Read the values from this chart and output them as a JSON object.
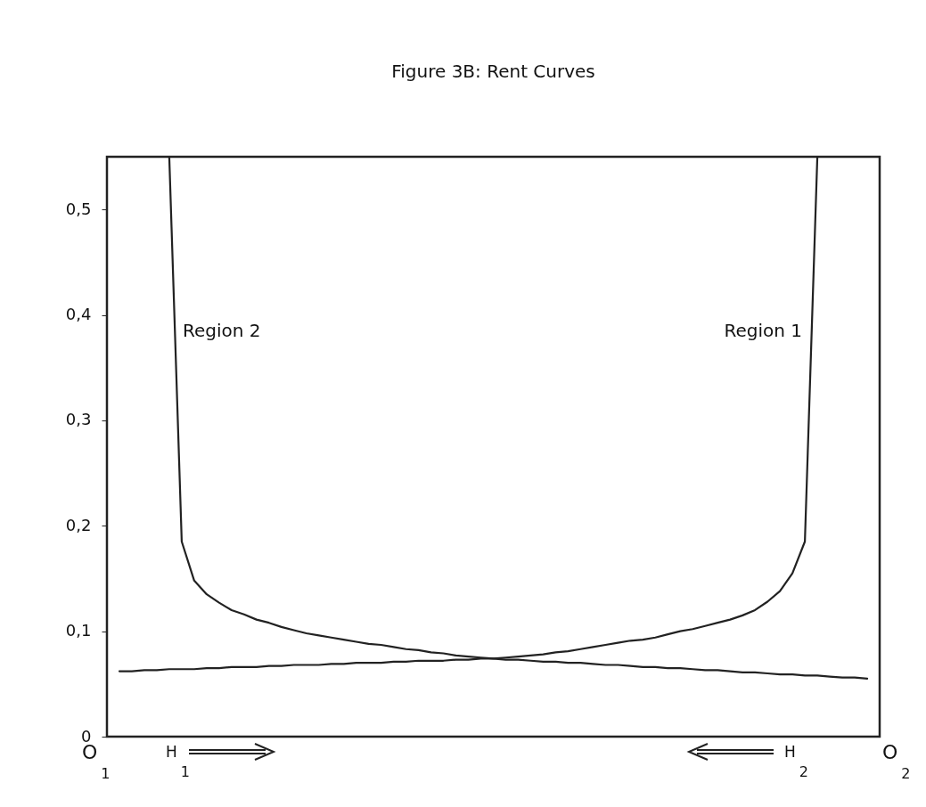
{
  "chart_data": {
    "type": "line",
    "title": "Figure 3B: Rent Curves",
    "categories": [
      null,
      null,
      null,
      null,
      null,
      null,
      null,
      null,
      null,
      null,
      null,
      null,
      null,
      null,
      null,
      null,
      null,
      null,
      null,
      null,
      null,
      null,
      null,
      null,
      null,
      null,
      null,
      null,
      null,
      null,
      null,
      null,
      null,
      null,
      null,
      null,
      null,
      null,
      null,
      null,
      null,
      null,
      null,
      null,
      null,
      null,
      null,
      null,
      null,
      null,
      null,
      null,
      null,
      null,
      null,
      null,
      null,
      null,
      null,
      null,
      null,
      null,
      null
    ],
    "series": [
      {
        "color": "#222222",
        "values": [
          null,
          null,
          null,
          null,
          null,
          0.55,
          0.185,
          0.148,
          0.135,
          0.127,
          0.12,
          0.116,
          0.111,
          0.108,
          0.104,
          0.101,
          0.098,
          0.096,
          0.094,
          0.092,
          0.09,
          0.088,
          0.087,
          0.085,
          0.083,
          0.082,
          0.08,
          0.079,
          0.077,
          0.076,
          0.075,
          0.074,
          0.073,
          0.073,
          0.072,
          0.071,
          0.071,
          0.07,
          0.07,
          0.069,
          0.068,
          0.068,
          0.067,
          0.066,
          0.066,
          0.065,
          0.065,
          0.064,
          0.063,
          0.063,
          0.062,
          0.061,
          0.061,
          0.06,
          0.059,
          0.059,
          0.058,
          0.058,
          0.057,
          0.056,
          0.056,
          0.055,
          null
        ]
      },
      {
        "color": "#222222",
        "values": [
          null,
          0.062,
          0.062,
          0.063,
          0.063,
          0.064,
          0.064,
          0.064,
          0.065,
          0.065,
          0.066,
          0.066,
          0.066,
          0.067,
          0.067,
          0.068,
          0.068,
          0.068,
          0.069,
          0.069,
          0.07,
          0.07,
          0.07,
          0.071,
          0.071,
          0.072,
          0.072,
          0.072,
          0.073,
          0.073,
          0.074,
          0.074,
          0.075,
          0.076,
          0.077,
          0.078,
          0.08,
          0.081,
          0.083,
          0.085,
          0.087,
          0.089,
          0.091,
          0.092,
          0.094,
          0.097,
          0.1,
          0.102,
          0.105,
          0.108,
          0.111,
          0.115,
          0.12,
          0.128,
          0.138,
          0.155,
          0.185,
          0.55,
          null,
          null,
          null,
          null,
          null
        ]
      }
    ],
    "ylim": [
      0,
      0.55
    ],
    "yticks": [
      0,
      {
        "value": 0.1,
        "label": "0,1"
      },
      {
        "value": 0.2,
        "label": "0,2"
      },
      {
        "value": 0.3,
        "label": "0,3"
      },
      {
        "value": 0.4,
        "label": "0,4"
      },
      {
        "value": 0.5,
        "label": "0,5"
      }
    ],
    "tick_labels": "y",
    "grid": false,
    "legend": false,
    "marker": "none",
    "line_style": "solid",
    "annotations": [
      "Region 2",
      "Region 1",
      "O$_{1}$",
      "H$_{1}$",
      "H$_{2}$",
      "O$_{2}$"
    ]
  }
}
